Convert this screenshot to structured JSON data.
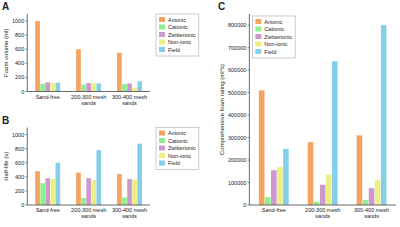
{
  "chart_data": [
    {
      "type": "bar",
      "title": "A",
      "y_label": "Foam volume (ml)",
      "categories": [
        "Sand-free",
        "200-300 mesh sands",
        "300-400 mesh sands"
      ],
      "series": [
        {
          "name": "Anionic",
          "color": "#f4a460",
          "values": [
            1000,
            600,
            550
          ]
        },
        {
          "name": "Cationic",
          "color": "#90ee90",
          "values": [
            110,
            100,
            105
          ]
        },
        {
          "name": "Zwitterionic",
          "color": "#cc99cc",
          "values": [
            130,
            120,
            115
          ]
        },
        {
          "name": "Non-ionic",
          "color": "#eeee88",
          "values": [
            125,
            120,
            55
          ]
        },
        {
          "name": "Field",
          "color": "#87ceeb",
          "values": [
            125,
            115,
            145
          ]
        }
      ],
      "ylim": [
        0,
        1100
      ],
      "yticks": [
        0,
        200,
        400,
        600,
        800,
        1000
      ],
      "grid": false,
      "legend": "upper right"
    },
    {
      "type": "bar",
      "title": "B",
      "y_label": "Half-life (s)",
      "categories": [
        "Sand-free",
        "200-300 mesh sands",
        "300-400 mesh sands"
      ],
      "series": [
        {
          "name": "Anionic",
          "color": "#f4a460",
          "values": [
            480,
            460,
            440
          ]
        },
        {
          "name": "Cationic",
          "color": "#90ee90",
          "values": [
            310,
            100,
            110
          ]
        },
        {
          "name": "Zwitterionic",
          "color": "#cc99cc",
          "values": [
            380,
            380,
            370
          ]
        },
        {
          "name": "Non-ionic",
          "color": "#eeee88",
          "values": [
            370,
            350,
            360
          ]
        },
        {
          "name": "Field",
          "color": "#87ceeb",
          "values": [
            600,
            780,
            870
          ]
        }
      ],
      "ylim": [
        0,
        1100
      ],
      "yticks": [
        0,
        200,
        400,
        600,
        800,
        1000
      ],
      "grid": false,
      "legend": "upper right"
    },
    {
      "type": "bar",
      "title": "C",
      "y_label": "Comprehensive foam rating (ml*s)",
      "categories": [
        "Sand-free",
        "200-300 mesh sands",
        "300-400 mesh sands"
      ],
      "series": [
        {
          "name": "Anionic",
          "color": "#f4a460",
          "values": [
            510000,
            280000,
            310000
          ]
        },
        {
          "name": "Cationic",
          "color": "#90ee90",
          "values": [
            35000,
            15000,
            22000
          ]
        },
        {
          "name": "Zwitterionic",
          "color": "#cc99cc",
          "values": [
            155000,
            90000,
            75000
          ]
        },
        {
          "name": "Non-ionic",
          "color": "#eeee88",
          "values": [
            170000,
            135000,
            110000
          ]
        },
        {
          "name": "Field",
          "color": "#87ceeb",
          "values": [
            250000,
            640000,
            800000
          ]
        }
      ],
      "ylim": [
        0,
        850000
      ],
      "yticks": [
        0,
        100000,
        200000,
        300000,
        400000,
        500000,
        600000,
        700000,
        800000
      ],
      "grid": false,
      "legend": "upper left"
    }
  ]
}
